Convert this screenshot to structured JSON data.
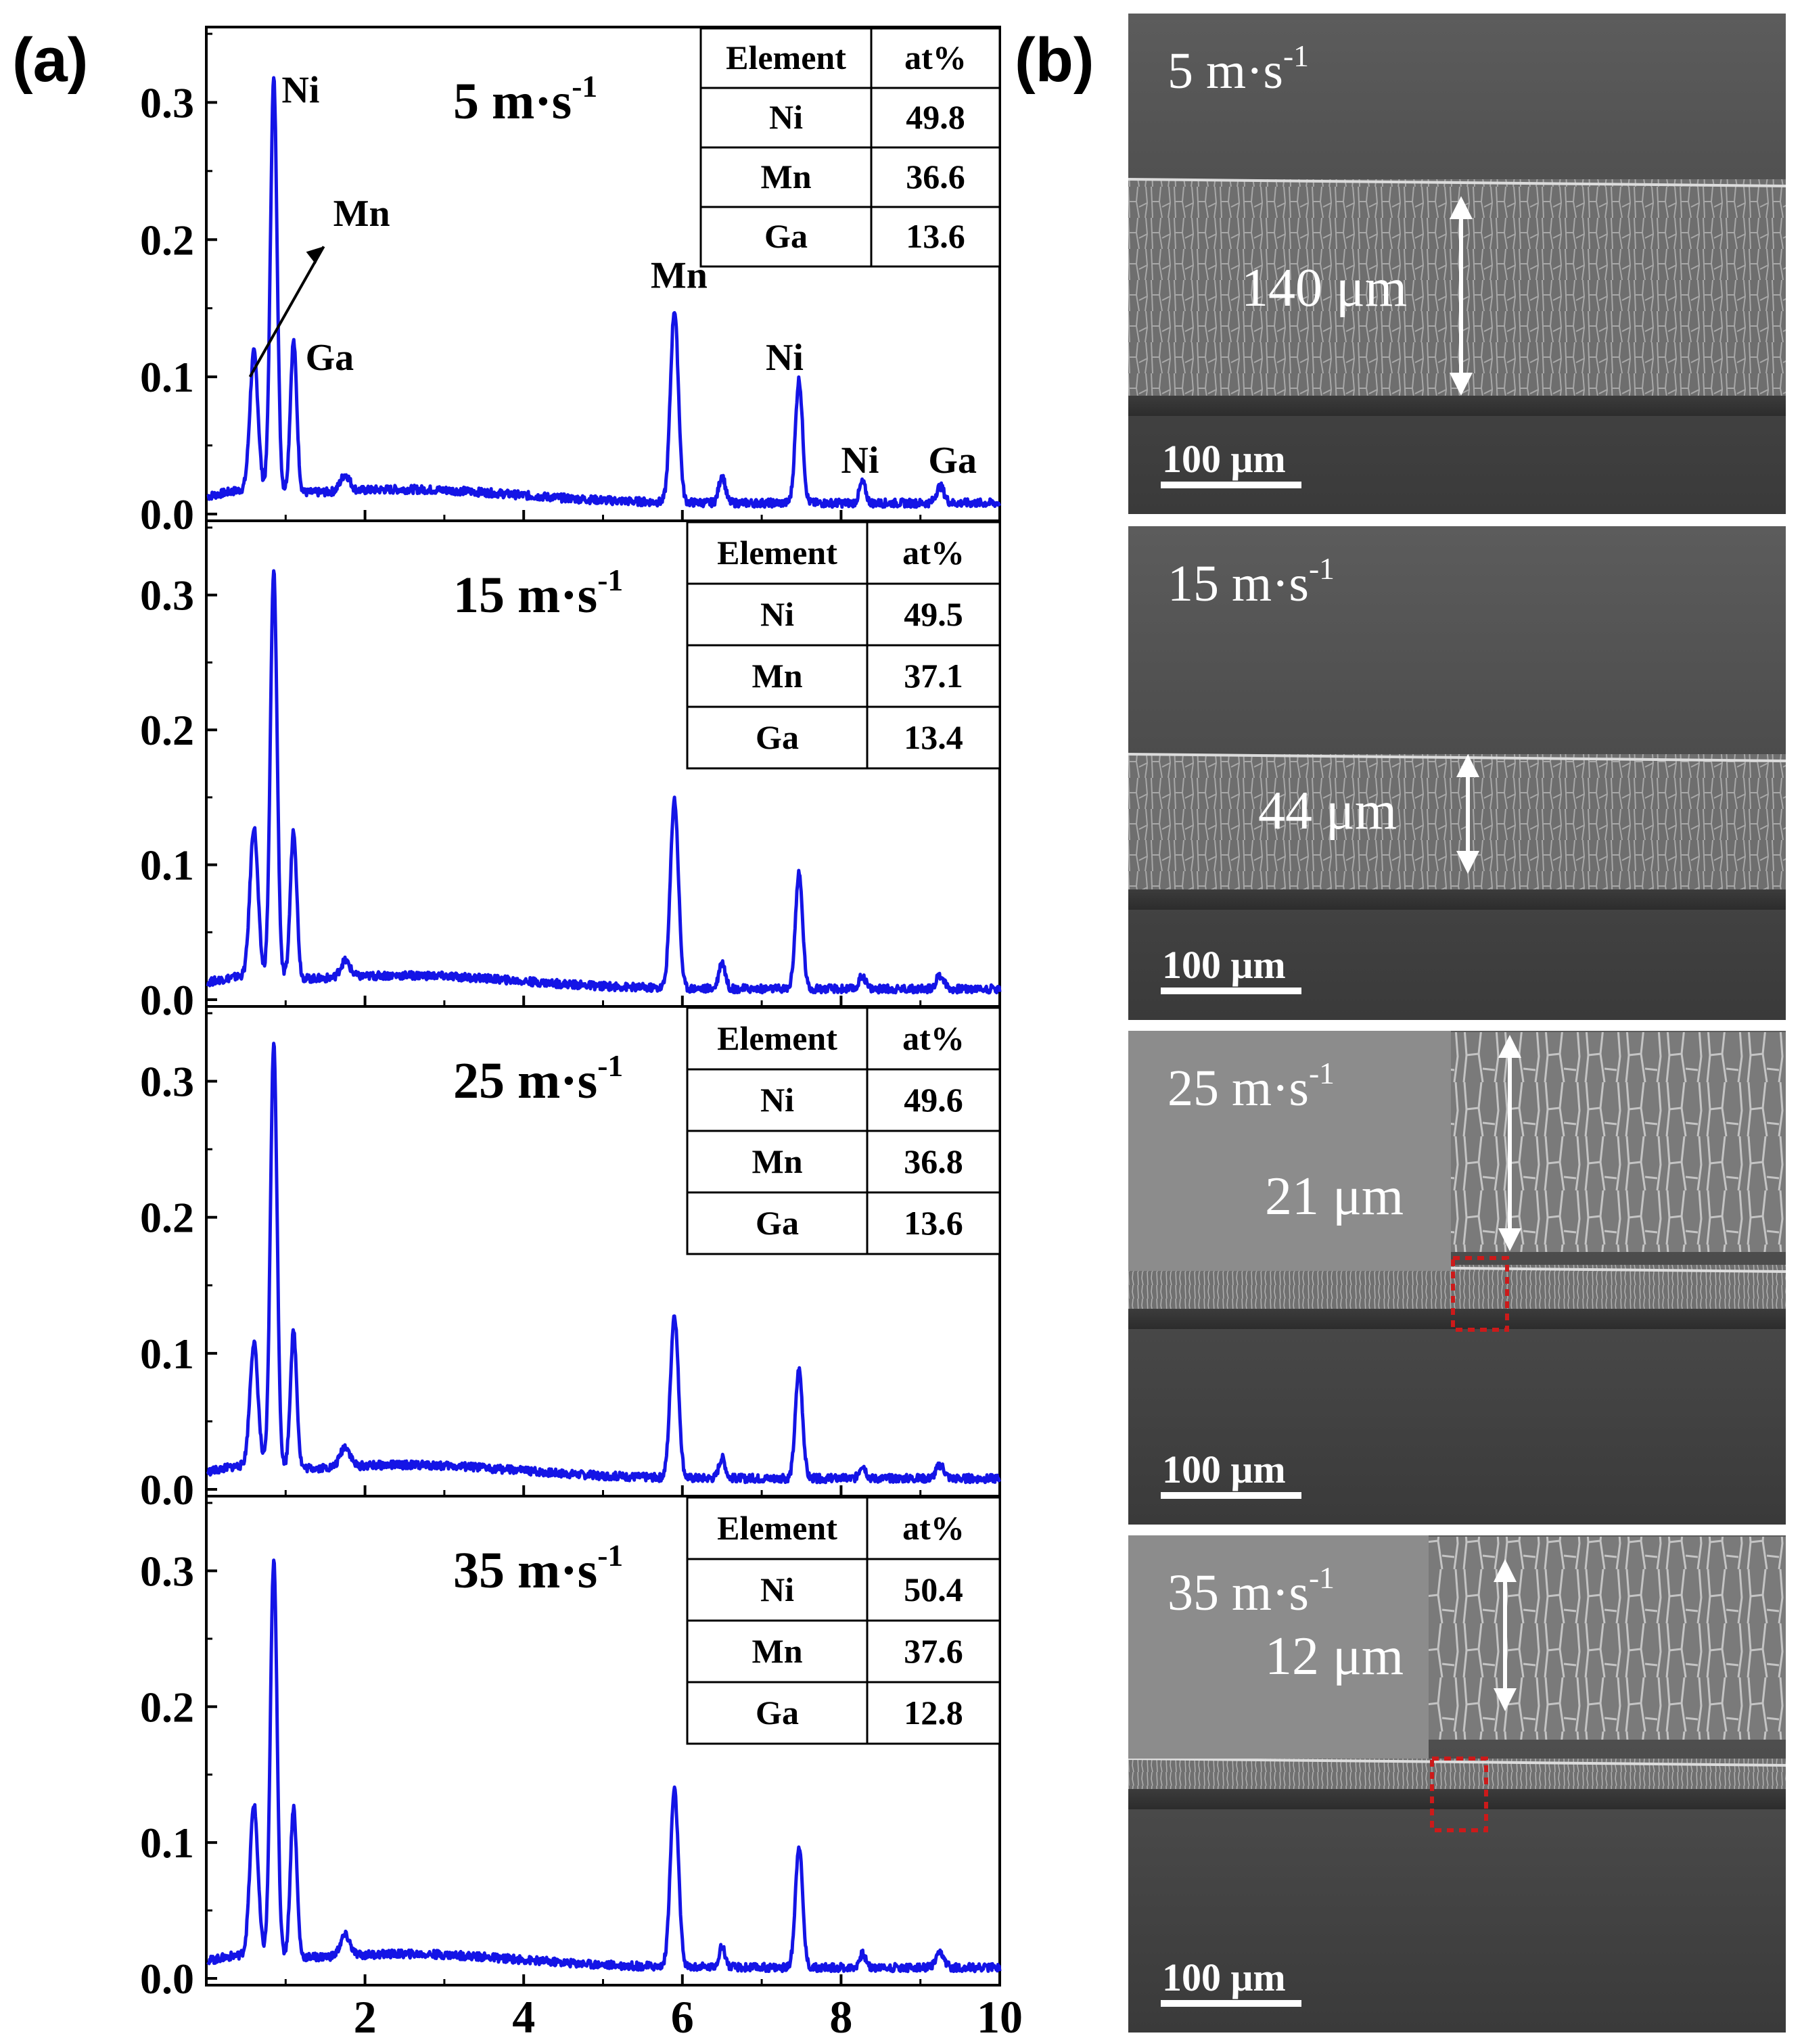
{
  "panel_a_label": "(a)",
  "panel_b_label": "(b)",
  "chart_data": {
    "type": "line",
    "xlabel": "",
    "ylabel": "",
    "xlim": [
      0,
      10
    ],
    "ylim": [
      0,
      0.35
    ],
    "x_ticks": [
      "2",
      "4",
      "6",
      "8",
      "10"
    ],
    "y_ticks": [
      "0.0",
      "0.1",
      "0.2",
      "0.3"
    ],
    "line_color": "#1414e6",
    "peaks_keV": [
      0.6,
      0.85,
      1.1,
      1.75,
      5.9,
      6.5,
      7.47,
      8.27,
      9.25
    ],
    "panels": [
      {
        "speed": "5 m·s",
        "speed_sup": "-1",
        "peak_heights": [
          0.1,
          0.3,
          0.11,
          0.012,
          0.14,
          0.02,
          0.09,
          0.015,
          0.012
        ],
        "peak_labels": [
          {
            "text": "Ni",
            "x": 0.95,
            "y": 0.3
          },
          {
            "text": "Mn",
            "x": 1.6,
            "y": 0.21
          },
          {
            "text": "Ga",
            "x": 1.25,
            "y": 0.105
          },
          {
            "text": "Mn",
            "x": 5.6,
            "y": 0.165
          },
          {
            "text": "Ni",
            "x": 7.05,
            "y": 0.105
          },
          {
            "text": "Ni",
            "x": 8.0,
            "y": 0.03
          },
          {
            "text": "Ga",
            "x": 9.1,
            "y": 0.03
          }
        ],
        "table": {
          "header": [
            "Element",
            "at%"
          ],
          "rows": [
            [
              "Ni",
              "49.8"
            ],
            [
              "Mn",
              "36.6"
            ],
            [
              "Ga",
              "13.6"
            ]
          ]
        }
      },
      {
        "speed": "15 m·s",
        "speed_sup": "-1",
        "peak_heights": [
          0.11,
          0.3,
          0.11,
          0.012,
          0.14,
          0.02,
          0.085,
          0.01,
          0.01
        ],
        "peak_labels": [],
        "table": {
          "header": [
            "Element",
            "at%"
          ],
          "rows": [
            [
              "Ni",
              "49.5"
            ],
            [
              "Mn",
              "37.1"
            ],
            [
              "Ga",
              "13.4"
            ]
          ]
        }
      },
      {
        "speed": "25 m·s",
        "speed_sup": "-1",
        "peak_heights": [
          0.09,
          0.31,
          0.1,
          0.015,
          0.12,
          0.015,
          0.08,
          0.01,
          0.01
        ],
        "peak_labels": [],
        "table": {
          "header": [
            "Element",
            "at%"
          ],
          "rows": [
            [
              "Ni",
              "49.6"
            ],
            [
              "Mn",
              "36.8"
            ],
            [
              "Ga",
              "13.6"
            ]
          ]
        }
      },
      {
        "speed": "35 m·s",
        "speed_sup": "-1",
        "peak_heights": [
          0.11,
          0.29,
          0.11,
          0.015,
          0.13,
          0.015,
          0.09,
          0.01,
          0.01
        ],
        "peak_labels": [],
        "table": {
          "header": [
            "Element",
            "at%"
          ],
          "rows": [
            [
              "Ni",
              "50.4"
            ],
            [
              "Mn",
              "37.6"
            ],
            [
              "Ga",
              "12.8"
            ]
          ]
        }
      }
    ]
  },
  "sem_panels": [
    {
      "speed": "5 m·s",
      "speed_sup": "-1",
      "thickness": "140 μm",
      "scale_bar": "100 μm"
    },
    {
      "speed": "15 m·s",
      "speed_sup": "-1",
      "thickness": "44 μm",
      "scale_bar": "100 μm"
    },
    {
      "speed": "25 m·s",
      "speed_sup": "-1",
      "thickness": "21 μm",
      "scale_bar": "100 μm"
    },
    {
      "speed": "35 m·s",
      "speed_sup": "-1",
      "thickness": "12 μm",
      "scale_bar": "100 μm"
    }
  ]
}
